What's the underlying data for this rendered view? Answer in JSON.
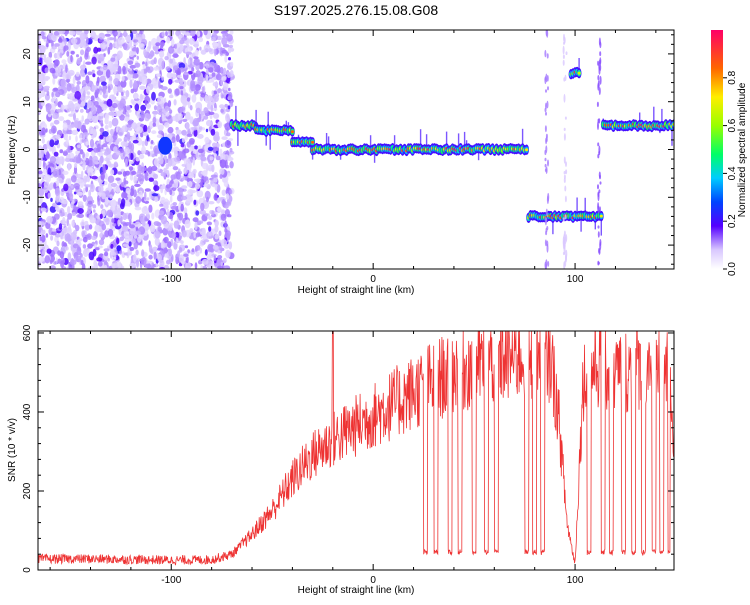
{
  "figure_title": "S197.2025.276.15.08.G08",
  "chart_data": [
    {
      "type": "heatmap",
      "title": "",
      "xlabel": "Height of straight line (km)",
      "ylabel": "Frequency (Hz)",
      "xlim": [
        -166,
        149
      ],
      "ylim": [
        -25,
        25
      ],
      "x_ticks": [
        -100,
        0,
        100
      ],
      "y_ticks": [
        -20,
        -10,
        0,
        10,
        20
      ],
      "grid": false,
      "colorbar": {
        "label": "Normalized spectral amplitude",
        "range": [
          0,
          1
        ],
        "ticks": [
          0.0,
          0.2,
          0.4,
          0.6,
          0.8
        ]
      },
      "features": [
        {
          "segment": "noise",
          "x_range": [
            -166,
            -70
          ],
          "freq_range": [
            -25,
            25
          ]
        },
        {
          "segment": "tone",
          "x_range": [
            -70,
            -58
          ],
          "freq": 5.0
        },
        {
          "segment": "tone",
          "x_range": [
            -58,
            -40
          ],
          "freq": 4.0
        },
        {
          "segment": "tone",
          "x_range": [
            -40,
            -30
          ],
          "freq": 1.5
        },
        {
          "segment": "tone",
          "x_range": [
            -30,
            76
          ],
          "freq": 0.0
        },
        {
          "segment": "tone",
          "x_range": [
            77,
            113
          ],
          "freq": -14.0
        },
        {
          "segment": "tone",
          "x_range": [
            98,
            102
          ],
          "freq": 16.0
        },
        {
          "segment": "tone",
          "x_range": [
            114,
            149
          ],
          "freq": 5.0
        }
      ]
    },
    {
      "type": "line",
      "title": "",
      "xlabel": "Height of straight line (km)",
      "ylabel": "SNR (10 * v/v)",
      "xlim": [
        -166,
        149
      ],
      "ylim": [
        0,
        605
      ],
      "x_ticks": [
        -100,
        0,
        100
      ],
      "y_ticks": [
        0,
        200,
        400,
        600
      ],
      "grid": false,
      "series_color": "#ee3333",
      "envelope": {
        "x": [
          -166,
          -140,
          -100,
          -80,
          -70,
          -60,
          -50,
          -40,
          -30,
          -20,
          -10,
          0,
          10,
          20,
          30,
          40,
          50,
          60,
          70,
          80,
          88,
          92,
          96,
          100,
          104,
          110,
          120,
          130,
          140,
          145,
          149
        ],
        "y": [
          28,
          28,
          25,
          26,
          40,
          90,
          150,
          230,
          290,
          330,
          360,
          390,
          420,
          450,
          480,
          500,
          520,
          530,
          540,
          545,
          540,
          380,
          120,
          15,
          480,
          520,
          500,
          510,
          540,
          520,
          350
        ]
      },
      "dropouts": {
        "level": 45,
        "x_ranges": [
          [
            25,
            27
          ],
          [
            30,
            32
          ],
          [
            37,
            39
          ],
          [
            42,
            44
          ],
          [
            49,
            51
          ],
          [
            55,
            57
          ],
          [
            60,
            62
          ],
          [
            75,
            77
          ],
          [
            79,
            81
          ],
          [
            83,
            85
          ],
          [
            106,
            108
          ],
          [
            113,
            115
          ],
          [
            117,
            119
          ],
          [
            123,
            125
          ],
          [
            128,
            130
          ],
          [
            133,
            135
          ],
          [
            138,
            140
          ],
          [
            142,
            144
          ],
          [
            146,
            147
          ]
        ]
      }
    }
  ]
}
